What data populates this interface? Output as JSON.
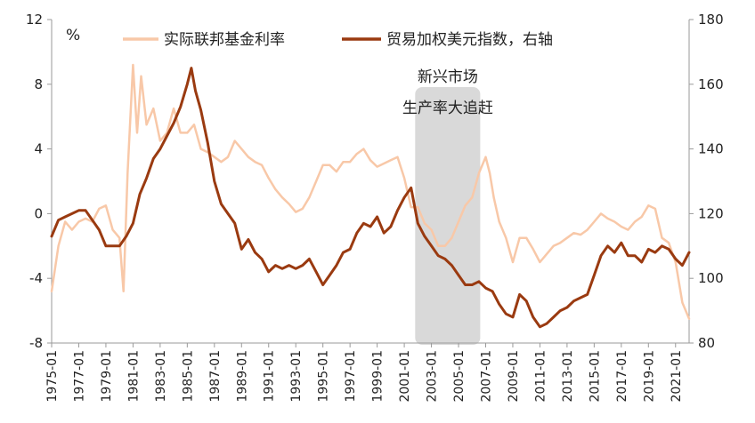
{
  "chart_data": {
    "type": "line",
    "title": "",
    "unit_label": "%",
    "left_axis": {
      "ylim": [
        -8,
        12
      ],
      "ticks": [
        -8,
        -4,
        0,
        4,
        8,
        12
      ]
    },
    "right_axis": {
      "ylim": [
        80,
        180
      ],
      "ticks": [
        80,
        100,
        120,
        140,
        160,
        180
      ]
    },
    "x_range": [
      1975.0,
      2022.0
    ],
    "x_tick_labels": [
      "1975-01",
      "1977-01",
      "1979-01",
      "1981-01",
      "1983-01",
      "1985-01",
      "1987-01",
      "1989-01",
      "1991-01",
      "1993-01",
      "1995-01",
      "1997-01",
      "1999-01",
      "2001-01",
      "2003-01",
      "2005-01",
      "2007-01",
      "2009-01",
      "2011-01",
      "2013-01",
      "2015-01",
      "2017-01",
      "2019-01",
      "2021-01"
    ],
    "shaded_region": {
      "x_start": 2001.8,
      "x_end": 2006.6,
      "label_lines": [
        "新兴市场",
        "生产率大追赶"
      ]
    },
    "series": [
      {
        "name": "实际联邦基金利率",
        "axis": "left",
        "color": "#F8C8A8",
        "x": [
          1975.0,
          1975.5,
          1976.0,
          1976.5,
          1977.0,
          1977.5,
          1978.0,
          1978.5,
          1979.0,
          1979.5,
          1980.0,
          1980.3,
          1980.6,
          1981.0,
          1981.3,
          1981.6,
          1982.0,
          1982.5,
          1983.0,
          1983.5,
          1984.0,
          1984.5,
          1985.0,
          1985.5,
          1986.0,
          1986.5,
          1987.0,
          1987.5,
          1988.0,
          1988.5,
          1989.0,
          1989.5,
          1990.0,
          1990.5,
          1991.0,
          1991.5,
          1992.0,
          1992.5,
          1993.0,
          1993.5,
          1994.0,
          1994.5,
          1995.0,
          1995.5,
          1996.0,
          1996.5,
          1997.0,
          1997.5,
          1998.0,
          1998.5,
          1999.0,
          1999.5,
          2000.0,
          2000.5,
          2001.0,
          2001.5,
          2002.0,
          2002.5,
          2003.0,
          2003.5,
          2004.0,
          2004.5,
          2005.0,
          2005.5,
          2006.0,
          2006.5,
          2007.0,
          2007.3,
          2007.6,
          2008.0,
          2008.5,
          2009.0,
          2009.5,
          2010.0,
          2010.5,
          2011.0,
          2011.5,
          2012.0,
          2012.5,
          2013.0,
          2013.5,
          2014.0,
          2014.5,
          2015.0,
          2015.5,
          2016.0,
          2016.5,
          2017.0,
          2017.5,
          2018.0,
          2018.5,
          2019.0,
          2019.5,
          2020.0,
          2020.5,
          2021.0,
          2021.5,
          2022.0
        ],
        "values": [
          -4.8,
          -2.0,
          -0.5,
          -1.0,
          -0.5,
          -0.3,
          -0.5,
          0.3,
          0.5,
          -1.0,
          -1.5,
          -4.8,
          2.5,
          9.2,
          5.0,
          8.5,
          5.5,
          6.5,
          4.5,
          5.0,
          6.5,
          5.0,
          5.0,
          5.5,
          4.0,
          3.8,
          3.5,
          3.2,
          3.5,
          4.5,
          4.0,
          3.5,
          3.2,
          3.0,
          2.2,
          1.5,
          1.0,
          0.6,
          0.1,
          0.3,
          1.0,
          2.0,
          3.0,
          3.0,
          2.6,
          3.2,
          3.2,
          3.7,
          4.0,
          3.3,
          2.9,
          3.1,
          3.3,
          3.5,
          2.2,
          0.4,
          0.4,
          -0.6,
          -1.0,
          -2.0,
          -2.0,
          -1.5,
          -0.5,
          0.5,
          1.0,
          2.5,
          3.5,
          2.5,
          1.0,
          -0.5,
          -1.5,
          -3.0,
          -1.5,
          -1.5,
          -2.2,
          -3.0,
          -2.5,
          -2.0,
          -1.8,
          -1.5,
          -1.2,
          -1.3,
          -1.0,
          -0.5,
          0.0,
          -0.3,
          -0.5,
          -0.8,
          -1.0,
          -0.5,
          -0.2,
          0.5,
          0.3,
          -1.5,
          -1.8,
          -3.0,
          -5.5,
          -6.5
        ]
      },
      {
        "name": "贸易加权美元指数，右轴",
        "axis": "right",
        "color": "#9A3A10",
        "x": [
          1975.0,
          1975.5,
          1976.0,
          1976.5,
          1977.0,
          1977.5,
          1978.0,
          1978.5,
          1979.0,
          1979.5,
          1980.0,
          1980.5,
          1981.0,
          1981.5,
          1982.0,
          1982.5,
          1983.0,
          1983.5,
          1984.0,
          1984.5,
          1985.0,
          1985.3,
          1985.6,
          1986.0,
          1986.5,
          1987.0,
          1987.5,
          1988.0,
          1988.5,
          1989.0,
          1989.5,
          1990.0,
          1990.5,
          1991.0,
          1991.5,
          1992.0,
          1992.5,
          1993.0,
          1993.5,
          1994.0,
          1994.5,
          1995.0,
          1995.5,
          1996.0,
          1996.5,
          1997.0,
          1997.5,
          1998.0,
          1998.5,
          1999.0,
          1999.5,
          2000.0,
          2000.5,
          2001.0,
          2001.5,
          2002.0,
          2002.5,
          2003.0,
          2003.5,
          2004.0,
          2004.5,
          2005.0,
          2005.5,
          2006.0,
          2006.5,
          2007.0,
          2007.5,
          2008.0,
          2008.5,
          2009.0,
          2009.5,
          2010.0,
          2010.5,
          2011.0,
          2011.5,
          2012.0,
          2012.5,
          2013.0,
          2013.5,
          2014.0,
          2014.5,
          2015.0,
          2015.5,
          2016.0,
          2016.5,
          2017.0,
          2017.5,
          2018.0,
          2018.5,
          2019.0,
          2019.5,
          2020.0,
          2020.5,
          2021.0,
          2021.5,
          2022.0
        ],
        "values": [
          113,
          118,
          119,
          120,
          121,
          121,
          118,
          115,
          110,
          110,
          110,
          113,
          117,
          126,
          131,
          137,
          140,
          144,
          148,
          153,
          160,
          165,
          158,
          152,
          142,
          130,
          123,
          120,
          117,
          109,
          112,
          108,
          106,
          102,
          104,
          103,
          104,
          103,
          104,
          106,
          102,
          98,
          101,
          104,
          108,
          109,
          114,
          117,
          116,
          119,
          114,
          116,
          121,
          125,
          128,
          117,
          113,
          110,
          107,
          106,
          104,
          101,
          98,
          98,
          99,
          97,
          96,
          92,
          89,
          88,
          95,
          93,
          88,
          85,
          86,
          88,
          90,
          91,
          93,
          94,
          95,
          101,
          107,
          110,
          108,
          111,
          107,
          107,
          105,
          109,
          108,
          110,
          109,
          106,
          104,
          108
        ]
      }
    ]
  }
}
